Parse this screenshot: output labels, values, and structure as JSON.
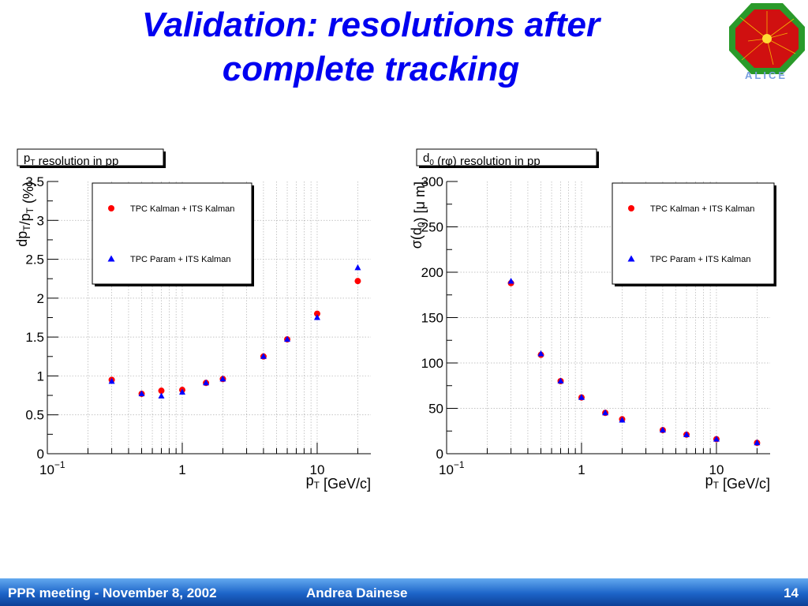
{
  "slide": {
    "title_line1": "Validation: resolutions after",
    "title_line2": "complete tracking",
    "logo_text": "ALICE"
  },
  "footer": {
    "left": "PPR meeting - November 8, 2002",
    "center": "Andrea Dainese",
    "page": "14"
  },
  "colors": {
    "title": "#0000f0",
    "kalman": "#ff0000",
    "param": "#0000ff"
  },
  "chart_data": [
    {
      "type": "scatter",
      "title": "p_T resolution in pp",
      "xlabel": "p_T [GeV/c]",
      "ylabel": "dp_T/p_T (%)",
      "xscale": "log",
      "xlim": [
        0.1,
        25
      ],
      "ylim": [
        0,
        3.5
      ],
      "xticks": [
        {
          "v": 0.1,
          "base": "10",
          "exp": "−1"
        },
        {
          "v": 1,
          "base": "1",
          "exp": ""
        },
        {
          "v": 10,
          "base": "10",
          "exp": ""
        }
      ],
      "yticks": [
        "0",
        "0.5",
        "1",
        "1.5",
        "2",
        "2.5",
        "3",
        "3.5"
      ],
      "grid": true,
      "legend": "top-left",
      "series": [
        {
          "name": "TPC Kalman + ITS Kalman",
          "marker": "circle",
          "x": [
            0.3,
            0.5,
            0.7,
            1.0,
            1.5,
            2.0,
            4.0,
            6.0,
            10.0,
            20.0
          ],
          "y": [
            0.95,
            0.77,
            0.81,
            0.82,
            0.91,
            0.96,
            1.25,
            1.47,
            1.8,
            2.22
          ]
        },
        {
          "name": "TPC Param + ITS Kalman",
          "marker": "triangle",
          "x": [
            0.3,
            0.5,
            0.7,
            1.0,
            1.5,
            2.0,
            4.0,
            6.0,
            10.0,
            20.0
          ],
          "y": [
            0.93,
            0.77,
            0.74,
            0.79,
            0.91,
            0.96,
            1.25,
            1.47,
            1.75,
            2.39
          ]
        }
      ]
    },
    {
      "type": "scatter",
      "title": "d_0 (rφ) resolution in pp",
      "xlabel": "p_T [GeV/c]",
      "ylabel": "σ(d_0) [μ m]",
      "xscale": "log",
      "xlim": [
        0.1,
        25
      ],
      "ylim": [
        0,
        300
      ],
      "xticks": [
        {
          "v": 0.1,
          "base": "10",
          "exp": "−1"
        },
        {
          "v": 1,
          "base": "1",
          "exp": ""
        },
        {
          "v": 10,
          "base": "10",
          "exp": ""
        }
      ],
      "yticks": [
        "0",
        "50",
        "100",
        "150",
        "200",
        "250",
        "300"
      ],
      "grid": true,
      "legend": "top-right",
      "series": [
        {
          "name": "TPC Kalman + ITS Kalman",
          "marker": "circle",
          "x": [
            0.3,
            0.5,
            0.7,
            1.0,
            1.5,
            2.0,
            4.0,
            6.0,
            10.0,
            20.0
          ],
          "y": [
            188,
            109,
            80,
            62,
            45,
            38,
            26,
            21,
            16,
            12
          ]
        },
        {
          "name": "TPC Param + ITS Kalman",
          "marker": "triangle",
          "x": [
            0.3,
            0.5,
            0.7,
            1.0,
            1.5,
            2.0,
            4.0,
            6.0,
            10.0,
            20.0
          ],
          "y": [
            190,
            110,
            80,
            62,
            45,
            37,
            26,
            21,
            16,
            12
          ]
        }
      ]
    }
  ]
}
